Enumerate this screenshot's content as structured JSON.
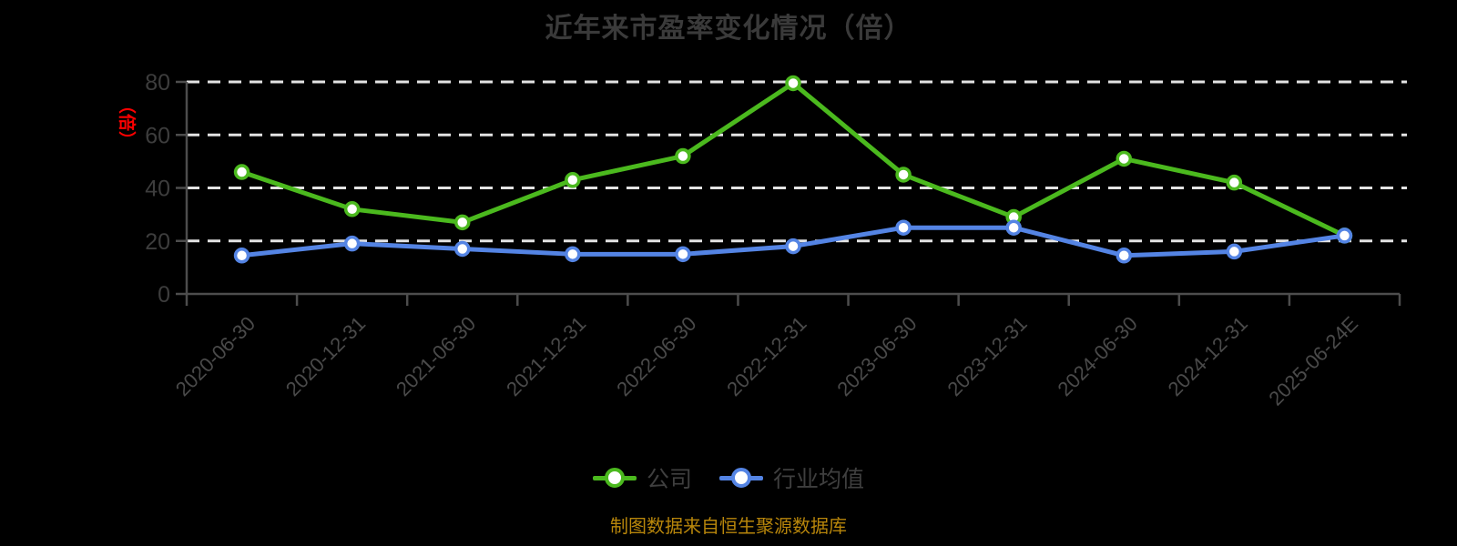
{
  "title": "近年来市盈率变化情况（倍）",
  "y_axis_unit": "（倍）",
  "source_note": "制图数据来自恒生聚源数据库",
  "colors": {
    "background": "#000000",
    "title_text": "#3a3a3a",
    "axis": "#4d4d4d",
    "y_tick_label": "#3d3d3d",
    "x_tick_label": "#4a4a4a",
    "gridline": "#e3e3e3",
    "unit_label": "#ff0000",
    "source_text": "#b8860b",
    "marker_fill": "#ffffff"
  },
  "chart_data": {
    "type": "line",
    "title": "近年来市盈率变化情况（倍）",
    "categories": [
      "2020-06-30",
      "2020-12-31",
      "2021-06-30",
      "2021-12-31",
      "2022-06-30",
      "2022-12-31",
      "2023-06-30",
      "2023-12-31",
      "2024-06-30",
      "2024-12-31",
      "2025-06-24E"
    ],
    "series": [
      {
        "id": "company",
        "name": "公司",
        "color": "#4bb91e",
        "values": [
          46,
          32,
          27,
          43,
          52,
          79.5,
          45,
          29,
          51,
          42,
          22
        ]
      },
      {
        "id": "industry",
        "name": "行业均值",
        "color": "#5484e4",
        "values": [
          14.5,
          19,
          17,
          15,
          15,
          18,
          25,
          25,
          14.5,
          16,
          22
        ]
      }
    ],
    "xlabel": "",
    "ylabel": "（倍）",
    "ylim": [
      0,
      80
    ],
    "y_ticks": [
      0,
      20,
      40,
      60,
      80
    ],
    "grid": "horizontal-dashed",
    "legend_position": "bottom",
    "marker": "circle-white-fill"
  }
}
